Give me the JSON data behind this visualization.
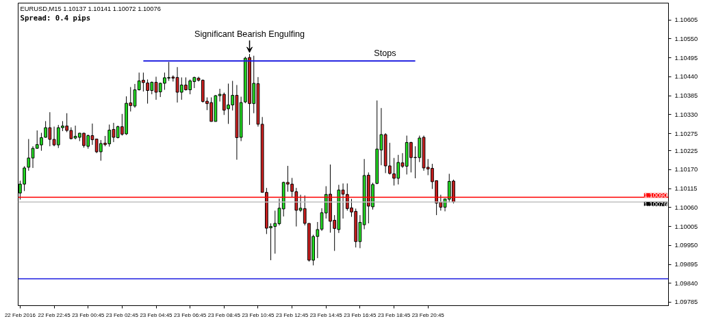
{
  "chart_data": {
    "type": "candlestick",
    "x": [
      "2016-02-22T20:45",
      "2016-02-22T21:00",
      "2016-02-22T21:15",
      "2016-02-22T21:30",
      "2016-02-22T21:45",
      "2016-02-22T22:00",
      "2016-02-22T22:15",
      "2016-02-22T22:30",
      "2016-02-22T22:45",
      "2016-02-22T23:00",
      "2016-02-22T23:15",
      "2016-02-22T23:30",
      "2016-02-22T23:45",
      "2016-02-23T00:00",
      "2016-02-23T00:15",
      "2016-02-23T00:30",
      "2016-02-23T00:45",
      "2016-02-23T01:00",
      "2016-02-23T01:15",
      "2016-02-23T01:30",
      "2016-02-23T01:45",
      "2016-02-23T02:00",
      "2016-02-23T02:15",
      "2016-02-23T02:30",
      "2016-02-23T02:45",
      "2016-02-23T03:00",
      "2016-02-23T03:15",
      "2016-02-23T03:30",
      "2016-02-23T03:45",
      "2016-02-23T04:00",
      "2016-02-23T04:15",
      "2016-02-23T04:30",
      "2016-02-23T04:45",
      "2016-02-23T05:00",
      "2016-02-23T05:15",
      "2016-02-23T05:30",
      "2016-02-23T05:45",
      "2016-02-23T06:00",
      "2016-02-23T06:15",
      "2016-02-23T06:30",
      "2016-02-23T06:45",
      "2016-02-23T07:00",
      "2016-02-23T07:15",
      "2016-02-23T07:30",
      "2016-02-23T07:45",
      "2016-02-23T08:00",
      "2016-02-23T08:15",
      "2016-02-23T08:30",
      "2016-02-23T08:45",
      "2016-02-23T09:00",
      "2016-02-23T09:15",
      "2016-02-23T09:30",
      "2016-02-23T09:45",
      "2016-02-23T10:00",
      "2016-02-23T10:15",
      "2016-02-23T10:30",
      "2016-02-23T10:45",
      "2016-02-23T11:00",
      "2016-02-23T11:15",
      "2016-02-23T11:30",
      "2016-02-23T11:45",
      "2016-02-23T12:00",
      "2016-02-23T12:15",
      "2016-02-23T12:30",
      "2016-02-23T12:45",
      "2016-02-23T13:00",
      "2016-02-23T13:15",
      "2016-02-23T13:30",
      "2016-02-23T13:45",
      "2016-02-23T14:00",
      "2016-02-23T14:15",
      "2016-02-23T14:30",
      "2016-02-23T14:45",
      "2016-02-23T15:00",
      "2016-02-23T15:15",
      "2016-02-23T15:30",
      "2016-02-23T15:45",
      "2016-02-23T16:00",
      "2016-02-23T16:15",
      "2016-02-23T16:30",
      "2016-02-23T16:45",
      "2016-02-23T17:00",
      "2016-02-23T17:15",
      "2016-02-23T17:30",
      "2016-02-23T17:45",
      "2016-02-23T18:00",
      "2016-02-23T18:15",
      "2016-02-23T18:30",
      "2016-02-23T18:45",
      "2016-02-23T19:00",
      "2016-02-23T19:15",
      "2016-02-23T19:30",
      "2016-02-23T19:45",
      "2016-02-23T20:00",
      "2016-02-23T20:15",
      "2016-02-23T20:30",
      "2016-02-23T20:45",
      "2016-02-23T21:00",
      "2016-02-23T21:15",
      "2016-02-23T21:30",
      "2016-02-23T21:45",
      "2016-02-23T22:00",
      "2016-02-23T22:15"
    ],
    "ohlc": [
      [
        1.10102,
        1.10138,
        1.10083,
        1.10128
      ],
      [
        1.10128,
        1.1018,
        1.10108,
        1.10175
      ],
      [
        1.10177,
        1.10259,
        1.10167,
        1.10204
      ],
      [
        1.10204,
        1.10238,
        1.10175,
        1.10232
      ],
      [
        1.10232,
        1.10284,
        1.10231,
        1.10243
      ],
      [
        1.10242,
        1.10277,
        1.10225,
        1.10263
      ],
      [
        1.10264,
        1.10311,
        1.10263,
        1.10292
      ],
      [
        1.10292,
        1.10337,
        1.10238,
        1.10258
      ],
      [
        1.10258,
        1.10295,
        1.10238,
        1.10242
      ],
      [
        1.10242,
        1.103,
        1.10233,
        1.10292
      ],
      [
        1.10292,
        1.10311,
        1.10282,
        1.10297
      ],
      [
        1.10297,
        1.10334,
        1.10279,
        1.10284
      ],
      [
        1.10284,
        1.10293,
        1.10258,
        1.1026
      ],
      [
        1.10262,
        1.10298,
        1.10258,
        1.10267
      ],
      [
        1.10264,
        1.10277,
        1.10253,
        1.10276
      ],
      [
        1.10276,
        1.10277,
        1.10234,
        1.1024
      ],
      [
        1.10238,
        1.10272,
        1.10231,
        1.10269
      ],
      [
        1.10269,
        1.10304,
        1.10242,
        1.10257
      ],
      [
        1.10259,
        1.10259,
        1.10218,
        1.10222
      ],
      [
        1.10222,
        1.10256,
        1.10196,
        1.10246
      ],
      [
        1.10247,
        1.10268,
        1.10238,
        1.10243
      ],
      [
        1.10245,
        1.10301,
        1.10237,
        1.10285
      ],
      [
        1.10287,
        1.10306,
        1.1025,
        1.10264
      ],
      [
        1.10263,
        1.10298,
        1.10261,
        1.10295
      ],
      [
        1.10295,
        1.10332,
        1.10269,
        1.10273
      ],
      [
        1.10274,
        1.10383,
        1.10271,
        1.10363
      ],
      [
        1.10364,
        1.1041,
        1.10339,
        1.10356
      ],
      [
        1.10355,
        1.10419,
        1.1035,
        1.10402
      ],
      [
        1.10402,
        1.10452,
        1.104,
        1.10428
      ],
      [
        1.1043,
        1.10452,
        1.10397,
        1.10423
      ],
      [
        1.10422,
        1.10432,
        1.10362,
        1.104
      ],
      [
        1.104,
        1.10426,
        1.10389,
        1.10424
      ],
      [
        1.10424,
        1.1044,
        1.10373,
        1.10395
      ],
      [
        1.10396,
        1.10423,
        1.10381,
        1.10421
      ],
      [
        1.10421,
        1.10452,
        1.10402,
        1.10437
      ],
      [
        1.10436,
        1.10483,
        1.10428,
        1.10438
      ],
      [
        1.10439,
        1.10444,
        1.10426,
        1.10436
      ],
      [
        1.10438,
        1.10468,
        1.10365,
        1.10395
      ],
      [
        1.10395,
        1.10438,
        1.10373,
        1.10416
      ],
      [
        1.10416,
        1.10438,
        1.104,
        1.10402
      ],
      [
        1.10402,
        1.10432,
        1.10389,
        1.10428
      ],
      [
        1.10426,
        1.1044,
        1.10407,
        1.10438
      ],
      [
        1.10436,
        1.1044,
        1.10426,
        1.1043
      ],
      [
        1.1043,
        1.10432,
        1.10365,
        1.10368
      ],
      [
        1.10369,
        1.1038,
        1.10343,
        1.10362
      ],
      [
        1.10365,
        1.1038,
        1.1031,
        1.1031
      ],
      [
        1.1031,
        1.10387,
        1.1031,
        1.10385
      ],
      [
        1.10385,
        1.10405,
        1.10368,
        1.10389
      ],
      [
        1.10389,
        1.10394,
        1.10329,
        1.10343
      ],
      [
        1.10347,
        1.1042,
        1.10303,
        1.10358
      ],
      [
        1.10358,
        1.10428,
        1.10342,
        1.10386
      ],
      [
        1.10386,
        1.10416,
        1.10199,
        1.10263
      ],
      [
        1.10264,
        1.10382,
        1.10253,
        1.10365
      ],
      [
        1.10367,
        1.10498,
        1.10363,
        1.10494
      ],
      [
        1.10496,
        1.10506,
        1.103,
        1.10362
      ],
      [
        1.10362,
        1.10501,
        1.10334,
        1.10421
      ],
      [
        1.1042,
        1.10439,
        1.10295,
        1.10302
      ],
      [
        1.10302,
        1.10323,
        1.10104,
        1.10104
      ],
      [
        1.10104,
        1.10117,
        1.09983,
        1.1
      ],
      [
        1.10001,
        1.10014,
        1.09907,
        1.10005
      ],
      [
        1.10005,
        1.10051,
        1.09926,
        1.10014
      ],
      [
        1.10013,
        1.10086,
        1.10008,
        1.10058
      ],
      [
        1.10056,
        1.10135,
        1.10034,
        1.10133
      ],
      [
        1.10133,
        1.10181,
        1.10106,
        1.10128
      ],
      [
        1.10128,
        1.10146,
        1.10091,
        1.10107
      ],
      [
        1.10106,
        1.10117,
        1.10005,
        1.10052
      ],
      [
        1.10052,
        1.10097,
        1.10047,
        1.10058
      ],
      [
        1.10057,
        1.10095,
        1.10008,
        1.10014
      ],
      [
        1.10014,
        1.10014,
        1.09903,
        1.09907
      ],
      [
        1.09907,
        1.09981,
        1.09892,
        1.09976
      ],
      [
        1.09976,
        1.10018,
        1.09913,
        1.09996
      ],
      [
        1.09997,
        1.10058,
        1.09992,
        1.10045
      ],
      [
        1.10044,
        1.10122,
        1.10028,
        1.10098
      ],
      [
        1.10099,
        1.10185,
        1.09987,
        1.1002
      ],
      [
        1.10023,
        1.10038,
        1.09934,
        1.09999
      ],
      [
        1.09996,
        1.10126,
        1.09986,
        1.10111
      ],
      [
        1.10111,
        1.1013,
        1.10028,
        1.10099
      ],
      [
        1.10098,
        1.1013,
        1.10051,
        1.10057
      ],
      [
        1.10059,
        1.10085,
        1.10033,
        1.10047
      ],
      [
        1.10049,
        1.10057,
        1.09944,
        1.09961
      ],
      [
        1.09961,
        1.10038,
        1.09942,
        1.10017
      ],
      [
        1.1001,
        1.10201,
        1.09997,
        1.10153
      ],
      [
        1.10154,
        1.10162,
        1.10014,
        1.10064
      ],
      [
        1.10062,
        1.10132,
        1.10054,
        1.10127
      ],
      [
        1.1013,
        1.10371,
        1.10128,
        1.1023
      ],
      [
        1.10227,
        1.10349,
        1.10183,
        1.10272
      ],
      [
        1.10272,
        1.10276,
        1.1016,
        1.10181
      ],
      [
        1.10181,
        1.10248,
        1.10156,
        1.10159
      ],
      [
        1.10158,
        1.10204,
        1.10124,
        1.10145
      ],
      [
        1.10145,
        1.10213,
        1.10127,
        1.10191
      ],
      [
        1.1019,
        1.10218,
        1.10175,
        1.1018
      ],
      [
        1.1018,
        1.10269,
        1.10156,
        1.10249
      ],
      [
        1.10249,
        1.10251,
        1.10162,
        1.10205
      ],
      [
        1.10206,
        1.10238,
        1.10145,
        1.10205
      ],
      [
        1.10205,
        1.10269,
        1.10192,
        1.10262
      ],
      [
        1.10264,
        1.10269,
        1.10167,
        1.10175
      ],
      [
        1.10177,
        1.10201,
        1.10154,
        1.10172
      ],
      [
        1.10174,
        1.10187,
        1.10114,
        1.10135
      ],
      [
        1.10138,
        1.10139,
        1.10038,
        1.10073
      ],
      [
        1.10076,
        1.10097,
        1.10051,
        1.10061
      ],
      [
        1.10061,
        1.10086,
        1.10049,
        1.10085
      ],
      [
        1.10084,
        1.10158,
        1.10075,
        1.10136
      ],
      [
        1.10137,
        1.10141,
        1.10072,
        1.10076
      ]
    ],
    "colors": [
      "#22dd22",
      "#22dd22",
      "#22dd22",
      "#22dd22",
      "#22dd22",
      "#22dd22",
      "#22dd22",
      "#cc1f1f",
      "#cc1f1f",
      "#22dd22",
      "#22dd22",
      "#cc1f1f",
      "#cc1f1f",
      "#22dd22",
      "#22dd22",
      "#cc1f1f",
      "#22dd22",
      "#cc1f1f",
      "#cc1f1f",
      "#22dd22",
      "#cc1f1f",
      "#22dd22",
      "#cc1f1f",
      "#22dd22",
      "#cc1f1f",
      "#22dd22",
      "#cc1f1f",
      "#22dd22",
      "#22dd22",
      "#cc1f1f",
      "#cc1f1f",
      "#22dd22",
      "#cc1f1f",
      "#22dd22",
      "#22dd22",
      "#22dd22",
      "#cc1f1f",
      "#cc1f1f",
      "#22dd22",
      "#cc1f1f",
      "#22dd22",
      "#22dd22",
      "#cc1f1f",
      "#cc1f1f",
      "#cc1f1f",
      "#cc1f1f",
      "#22dd22",
      "#22dd22",
      "#cc1f1f",
      "#22dd22",
      "#22dd22",
      "#cc1f1f",
      "#22dd22",
      "#22dd22",
      "#cc1f1f",
      "#22dd22",
      "#cc1f1f",
      "#cc1f1f",
      "#cc1f1f",
      "#22dd22",
      "#22dd22",
      "#22dd22",
      "#22dd22",
      "#cc1f1f",
      "#cc1f1f",
      "#cc1f1f",
      "#22dd22",
      "#cc1f1f",
      "#cc1f1f",
      "#22dd22",
      "#22dd22",
      "#22dd22",
      "#22dd22",
      "#cc1f1f",
      "#cc1f1f",
      "#22dd22",
      "#cc1f1f",
      "#cc1f1f",
      "#cc1f1f",
      "#cc1f1f",
      "#22dd22",
      "#22dd22",
      "#cc1f1f",
      "#22dd22",
      "#22dd22",
      "#22dd22",
      "#cc1f1f",
      "#cc1f1f",
      "#cc1f1f",
      "#22dd22",
      "#cc1f1f",
      "#22dd22",
      "#cc1f1f",
      "#cc1f1f",
      "#22dd22",
      "#cc1f1f",
      "#cc1f1f",
      "#cc1f1f",
      "#cc1f1f",
      "#cc1f1f",
      "#22dd22",
      "#22dd22",
      "#cc1f1f"
    ],
    "series": [
      {
        "type": "line",
        "name": "Stops",
        "color": "#1c1ce0",
        "x": [
          "2016-02-23T04:00",
          "2016-02-23T20:00"
        ],
        "values": [
          1.10486,
          1.10486
        ]
      }
    ],
    "xlim": [
      "2016-02-22T20:38",
      "2016-02-24T10:54"
    ],
    "xticks": [
      {
        "value": "2016-02-22T20:45",
        "label": "22 Feb 2016"
      },
      {
        "value": "2016-02-22T22:45",
        "label": "22 Feb 22:45"
      },
      {
        "value": "2016-02-23T00:45",
        "label": "23 Feb 00:45"
      },
      {
        "value": "2016-02-23T02:45",
        "label": "23 Feb 02:45"
      },
      {
        "value": "2016-02-23T04:45",
        "label": "23 Feb 04:45"
      },
      {
        "value": "2016-02-23T06:45",
        "label": "23 Feb 06:45"
      },
      {
        "value": "2016-02-23T08:45",
        "label": "23 Feb 08:45"
      },
      {
        "value": "2016-02-23T10:45",
        "label": "23 Feb 10:45"
      },
      {
        "value": "2016-02-23T12:45",
        "label": "23 Feb 12:45"
      },
      {
        "value": "2016-02-23T14:45",
        "label": "23 Feb 14:45"
      },
      {
        "value": "2016-02-23T16:45",
        "label": "23 Feb 16:45"
      },
      {
        "value": "2016-02-23T18:45",
        "label": "23 Feb 18:45"
      },
      {
        "value": "2016-02-23T20:45",
        "label": "23 Feb 20:45"
      }
    ],
    "ylim": [
      1.09775,
      1.10654
    ],
    "yticks": [
      1.10605,
      {
        "value": 1.1055,
        "label": "1.10550"
      },
      1.10495,
      {
        "value": 1.1044,
        "label": "1.10440"
      },
      1.10385,
      {
        "value": 1.1033,
        "label": "1.10330"
      },
      1.10275,
      1.10225,
      {
        "value": 1.1017,
        "label": "1.10170"
      },
      1.10115,
      {
        "value": 1.1006,
        "label": "1.10060"
      },
      1.10005,
      {
        "value": 1.0995,
        "label": "1.09950"
      },
      1.09895,
      {
        "value": 1.0984,
        "label": "1.09840"
      },
      1.09785
    ],
    "ref_lines": [
      {
        "axis": "y",
        "value": 1.1009,
        "label": "1.10090",
        "color": "#ff0000"
      },
      {
        "axis": "y",
        "value": 1.10076,
        "label": "1.10076",
        "color": "#c0c0c0"
      },
      {
        "axis": "y",
        "value": 1.09853,
        "color": "#1c1ce0"
      }
    ],
    "annotations": [
      "EURUSD,M15  1.10137 1.10141 1.10072 1.10076",
      "Spread: 0.4 pips",
      {
        "text": "Significant Bearish Engulfing",
        "x": "2016-02-23T10:15",
        "y": 1.10506
      }
    ],
    "grid": false
  }
}
